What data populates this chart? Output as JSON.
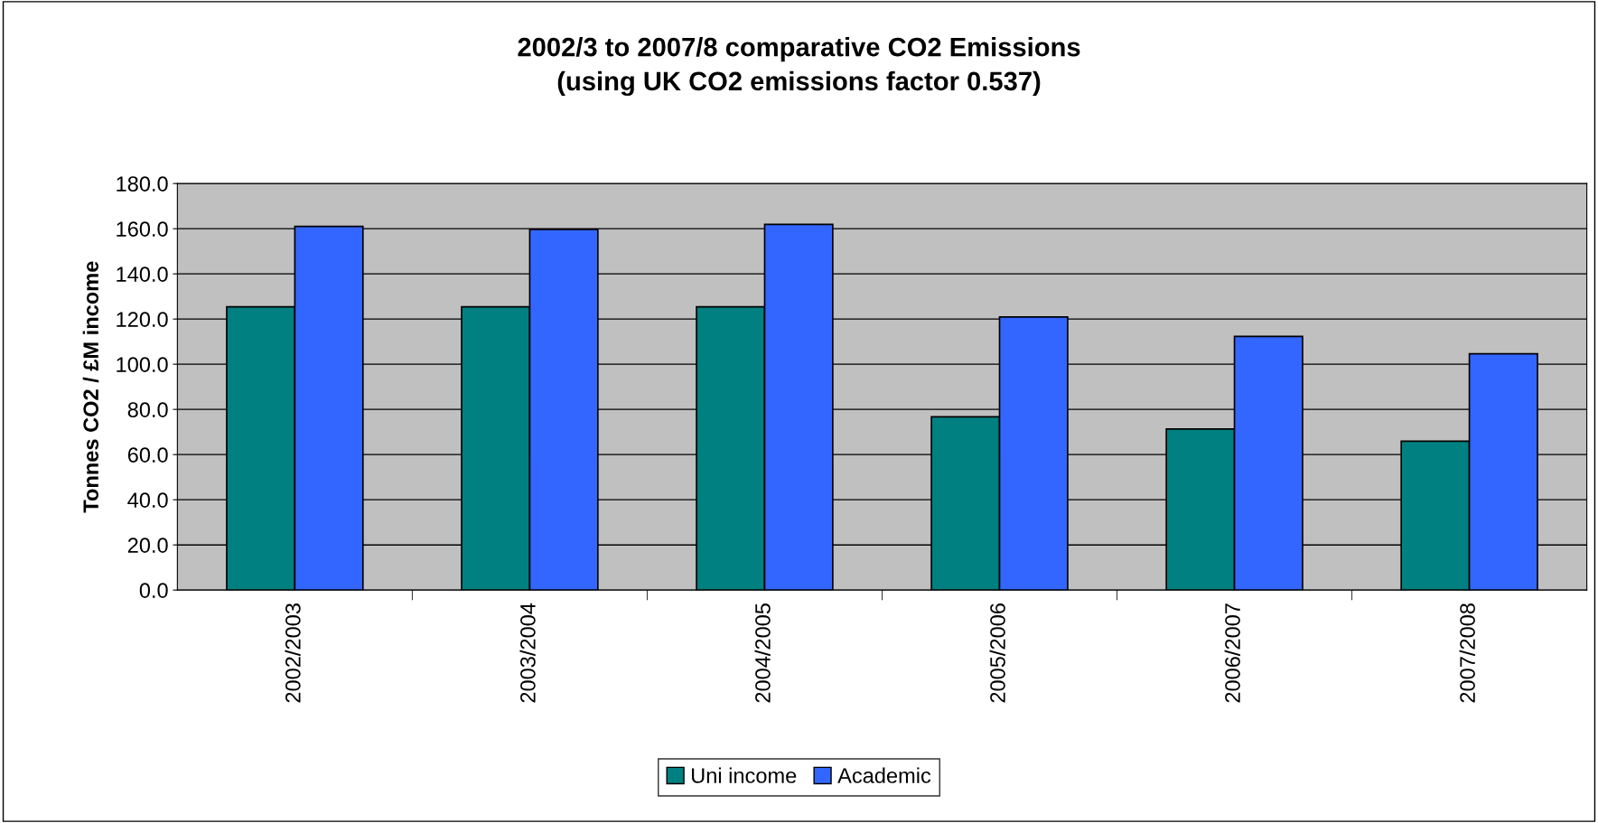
{
  "chart_data": {
    "type": "bar",
    "title": "2002/3 to 2007/8 comparative CO2 Emissions\n(using UK CO2 emissions factor 0.537)",
    "ylabel": "Tonnes CO2 / £M income",
    "categories": [
      "2002/2003",
      "2003/2004",
      "2004/2005",
      "2005/2006",
      "2006/2007",
      "2007/2008"
    ],
    "series": [
      {
        "name": "Uni income",
        "color": "#008080",
        "values": [
          125.4,
          125.4,
          125.4,
          76.7,
          71.3,
          65.9
        ]
      },
      {
        "name": "Academic",
        "color": "#3366ff",
        "values": [
          161.0,
          159.7,
          161.9,
          120.9,
          112.3,
          104.6
        ]
      }
    ],
    "ylim": [
      0,
      180
    ],
    "yticks": [
      {
        "value": 0,
        "label": "0.0"
      },
      {
        "value": 20,
        "label": "20.0"
      },
      {
        "value": 40,
        "label": "40.0"
      },
      {
        "value": 60,
        "label": "60.0"
      },
      {
        "value": 80,
        "label": "80.0"
      },
      {
        "value": 100,
        "label": "100.0"
      },
      {
        "value": 120,
        "label": "120.0"
      },
      {
        "value": 140,
        "label": "140.0"
      },
      {
        "value": 160,
        "label": "160.0"
      },
      {
        "value": 180,
        "label": "180.0"
      }
    ],
    "grid": "y",
    "legend": "bottom"
  }
}
